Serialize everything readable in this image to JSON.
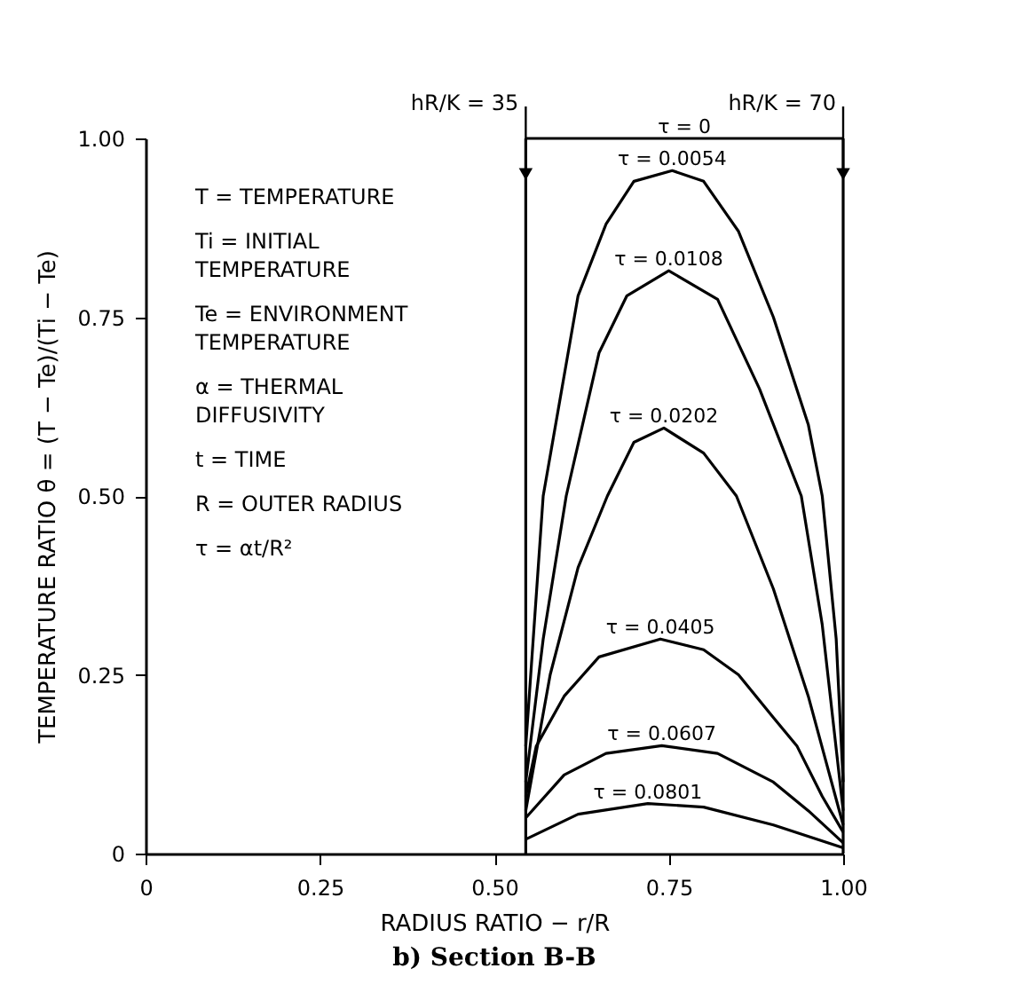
{
  "chart_data": {
    "type": "line",
    "title": "b)  Section B-B",
    "xlabel": "RADIUS RATIO − r/R",
    "ylabel": "TEMPERATURE RATIO   θ = (T − Te)/(Ti − Te)",
    "xlim": [
      0,
      1
    ],
    "ylim": [
      0,
      1
    ],
    "xticks": [
      0,
      0.25,
      {
        "value": 0.5,
        "label": "0.50"
      },
      0.75,
      {
        "value": 1,
        "label": "1.00"
      }
    ],
    "yticks": [
      0,
      0.25,
      {
        "value": 0.5,
        "label": "0.50"
      },
      0.75,
      {
        "value": 1,
        "label": "1.00"
      }
    ],
    "grid": false,
    "series": [
      {
        "name": "τ = 0",
        "color": "#000000",
        "x": [
          0.545,
          1
        ],
        "values": [
          1,
          1
        ]
      },
      {
        "name": "τ = 0.0054",
        "color": "#000000",
        "x": [
          0.545,
          0.57,
          0.62,
          0.66,
          0.7,
          0.755,
          0.8,
          0.85,
          0.9,
          0.95,
          0.97,
          0.99,
          1
        ],
        "values": [
          0.15,
          0.5,
          0.78,
          0.88,
          0.94,
          0.955,
          0.94,
          0.87,
          0.75,
          0.6,
          0.5,
          0.3,
          0.1
        ]
      },
      {
        "name": "τ = 0.0108",
        "color": "#000000",
        "x": [
          0.545,
          0.57,
          0.603,
          0.65,
          0.69,
          0.75,
          0.82,
          0.88,
          0.94,
          0.97,
          1
        ],
        "values": [
          0.1,
          0.3,
          0.5,
          0.7,
          0.78,
          0.815,
          0.775,
          0.65,
          0.5,
          0.32,
          0.06
        ]
      },
      {
        "name": "τ = 0.0202",
        "color": "#000000",
        "x": [
          0.545,
          0.58,
          0.62,
          0.662,
          0.7,
          0.743,
          0.8,
          0.847,
          0.9,
          0.95,
          1
        ],
        "values": [
          0.06,
          0.25,
          0.4,
          0.5,
          0.575,
          0.595,
          0.56,
          0.5,
          0.37,
          0.22,
          0.04
        ]
      },
      {
        "name": "τ = 0.0405",
        "color": "#000000",
        "x": [
          0.545,
          0.56,
          0.6,
          0.65,
          0.738,
          0.8,
          0.85,
          0.9,
          0.934,
          0.97,
          1
        ],
        "values": [
          0.08,
          0.15,
          0.22,
          0.275,
          0.3,
          0.285,
          0.25,
          0.19,
          0.15,
          0.08,
          0.03
        ]
      },
      {
        "name": "τ = 0.0607",
        "color": "#000000",
        "x": [
          0.545,
          0.6,
          0.66,
          0.74,
          0.82,
          0.9,
          0.95,
          1
        ],
        "values": [
          0.05,
          0.11,
          0.14,
          0.151,
          0.14,
          0.1,
          0.06,
          0.015
        ]
      },
      {
        "name": "τ = 0.0801",
        "color": "#000000",
        "x": [
          0.545,
          0.62,
          0.72,
          0.8,
          0.9,
          1
        ],
        "values": [
          0.02,
          0.055,
          0.07,
          0.065,
          0.04,
          0.008
        ]
      }
    ],
    "annotations": [
      "T = TEMPERATURE",
      "Ti = INITIAL\n       TEMPERATURE",
      "Te = ENVIRONMENT\n        TEMPERATURE",
      "α = THERMAL\n      DIFFUSIVITY",
      "t = TIME",
      "R = OUTER  RADIUS",
      "τ = αt/R²",
      {
        "text": "hR/K = 35",
        "x": 0.545,
        "y": 0.95
      },
      {
        "text": "hR/K = 70",
        "x": 1,
        "y": 0.95
      }
    ],
    "ref_lines": [
      {
        "axis": "x",
        "value": 0.545,
        "color": "#000000"
      },
      {
        "axis": "x",
        "value": 1,
        "color": "#000000"
      }
    ]
  }
}
